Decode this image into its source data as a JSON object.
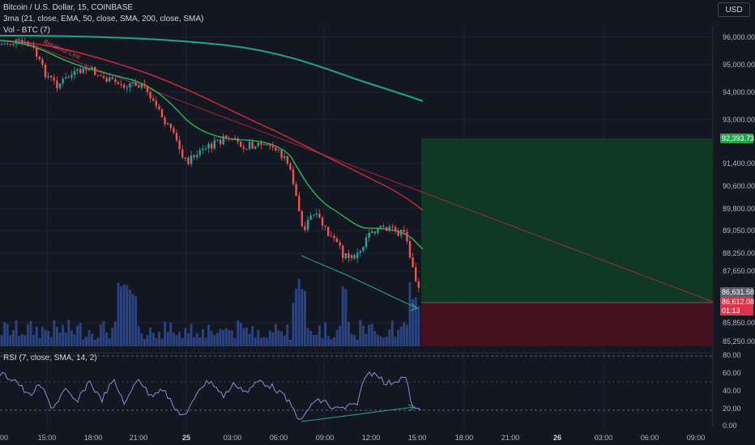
{
  "header": {
    "symbol_line": "Bitcoin / U.S. Dollar, 15, COINBASE",
    "indicator_line": "3ma (21, close, EMA, 50, close, SMA, 200, close, SMA)",
    "volume_line": "Vol - BTC (7)",
    "currency_button": "USD"
  },
  "annotations": {
    "breakout_line": "Breakout Line"
  },
  "price_axis": {
    "labels": [
      "96,000.00",
      "95,000.00",
      "94,000.00",
      "93,000.00",
      "91,400.00",
      "90,600.00",
      "89,800.00",
      "89,050.00",
      "88,250.00",
      "87,650.00",
      "85,850.00",
      "85,250.00"
    ]
  },
  "price_tags": {
    "target": "92,393.73",
    "current": "86,631.58",
    "entry": "86,612.08",
    "countdown": "01:13"
  },
  "rsi": {
    "legend": "RSI (7, close, SMA, 14, 2)",
    "axis_labels": [
      "80.00",
      "60.00",
      "40.00",
      "20.00",
      "0.00"
    ]
  },
  "time_axis": {
    "labels": [
      "00",
      "15:00",
      "18:00",
      "21:00",
      "25",
      "03:00",
      "06:00",
      "09:00",
      "12:00",
      "15:00",
      "18:00",
      "21:00",
      "26",
      "03:00",
      "06:00",
      "09:00"
    ]
  },
  "colors": {
    "background": "#131722",
    "up_candle": "#26a69a",
    "down_candle": "#ef5350",
    "ema21": "#22c55e",
    "sma50": "#c62a3a",
    "sma200": "#1fa58a",
    "target_zone": "#0f3d23",
    "stop_zone": "#4a1020",
    "volume": "#2f4a8f",
    "rsi_line": "#8b8fd1"
  }
}
